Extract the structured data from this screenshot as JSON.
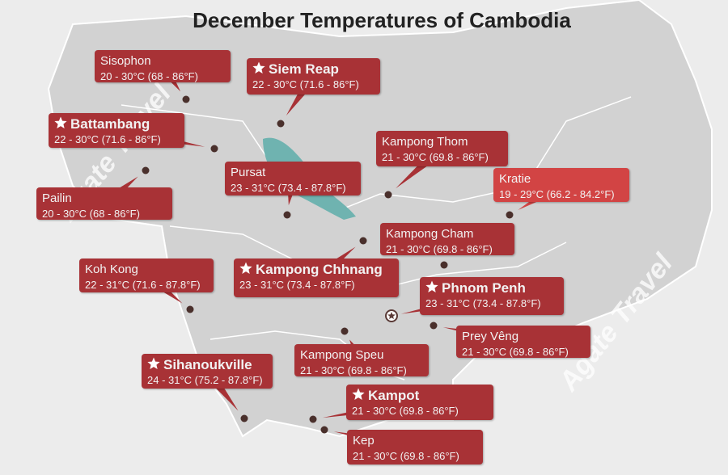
{
  "title": "December Temperatures of Cambodia",
  "watermark": "Agate Travel",
  "cities": [
    {
      "name": "Sisophon",
      "temperature": "20 - 30°C (68 - 86°F)",
      "star": false
    },
    {
      "name": "Siem Reap",
      "temperature": "22 - 30°C (71.6 - 86°F)",
      "star": true
    },
    {
      "name": "Battambang",
      "temperature": "22 - 30°C (71.6 - 86°F)",
      "star": true
    },
    {
      "name": "Kampong Thom",
      "temperature": "21 - 30°C (69.8 - 86°F)",
      "star": false
    },
    {
      "name": "Kratie",
      "temperature": "19 - 29°C (66.2 - 84.2°F)",
      "star": false
    },
    {
      "name": "Pursat",
      "temperature": "23 - 31°C (73.4 - 87.8°F)",
      "star": false
    },
    {
      "name": "Pailin",
      "temperature": "20 - 30°C (68 - 86°F)",
      "star": false
    },
    {
      "name": "Kampong Cham",
      "temperature": "21 - 30°C (69.8 - 86°F)",
      "star": false
    },
    {
      "name": "Kampong Chhnang",
      "temperature": "23 - 31°C (73.4 - 87.8°F)",
      "star": true
    },
    {
      "name": "Koh Kong",
      "temperature": "22 - 31°C (71.6 - 87.8°F)",
      "star": false
    },
    {
      "name": "Phnom Penh",
      "temperature": "23 - 31°C (73.4 - 87.8°F)",
      "star": true
    },
    {
      "name": "Prey Vêng",
      "temperature": "21 - 30°C (69.8 - 86°F)",
      "star": false
    },
    {
      "name": "Kampong Speu",
      "temperature": "21 - 30°C (69.8 - 86°F)",
      "star": false
    },
    {
      "name": "Sihanoukville",
      "temperature": "24 - 31°C (75.2 - 87.8°F)",
      "star": true
    },
    {
      "name": "Kampot",
      "temperature": "21 - 30°C (69.8 - 86°F)",
      "star": true
    },
    {
      "name": "Kep",
      "temperature": "21 - 30°C (69.8 - 86°F)",
      "star": false
    }
  ]
}
